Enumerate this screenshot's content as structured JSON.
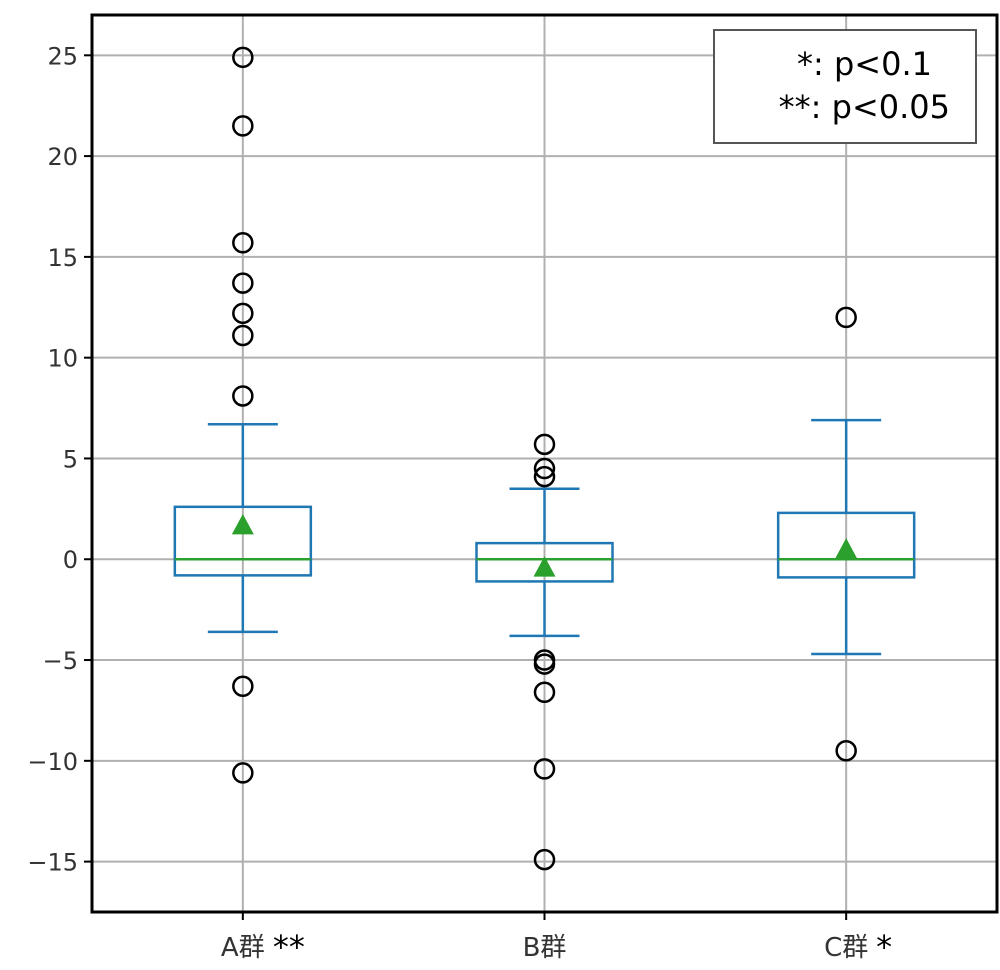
{
  "chart_data": {
    "type": "box",
    "title": "",
    "xlabel": "",
    "ylabel": "",
    "ylim": [
      -17.5,
      27
    ],
    "yticks": [
      -15,
      -10,
      -5,
      0,
      5,
      10,
      15,
      20,
      25
    ],
    "ytick_labels": [
      "−15",
      "−10",
      "−5",
      "0",
      "5",
      "10",
      "15",
      "20",
      "25"
    ],
    "grid": true,
    "categories": [
      "A群",
      "B群",
      "C群"
    ],
    "significance_marks": [
      "**",
      "",
      "*"
    ],
    "boxes": [
      {
        "whisker_low": -3.6,
        "q1": -0.8,
        "median": 0.0,
        "q3": 2.6,
        "whisker_high": 6.7,
        "mean": 1.7,
        "outliers": [
          24.9,
          21.5,
          15.7,
          13.7,
          12.2,
          11.1,
          8.1,
          -6.3,
          -10.6
        ]
      },
      {
        "whisker_low": -3.8,
        "q1": -1.1,
        "median": 0.0,
        "q3": 0.8,
        "whisker_high": 3.5,
        "mean": -0.4,
        "outliers": [
          5.7,
          4.5,
          4.1,
          -5.0,
          -5.2,
          -6.6,
          -10.4,
          -14.9
        ]
      },
      {
        "whisker_low": -4.7,
        "q1": -0.9,
        "median": 0.0,
        "q3": 2.3,
        "whisker_high": 6.9,
        "mean": 0.5,
        "outliers": [
          12.0,
          -9.5
        ]
      }
    ],
    "legend": {
      "placement": "top-right",
      "lines": [
        "*: p<0.1",
        "**: p<0.05"
      ]
    },
    "colors": {
      "box": "#1f77b4",
      "median": "#2ca02c",
      "mean": "#2ca02c",
      "outlier": "#000000",
      "grid": "#b0b0b0",
      "axes": "#000000"
    }
  }
}
